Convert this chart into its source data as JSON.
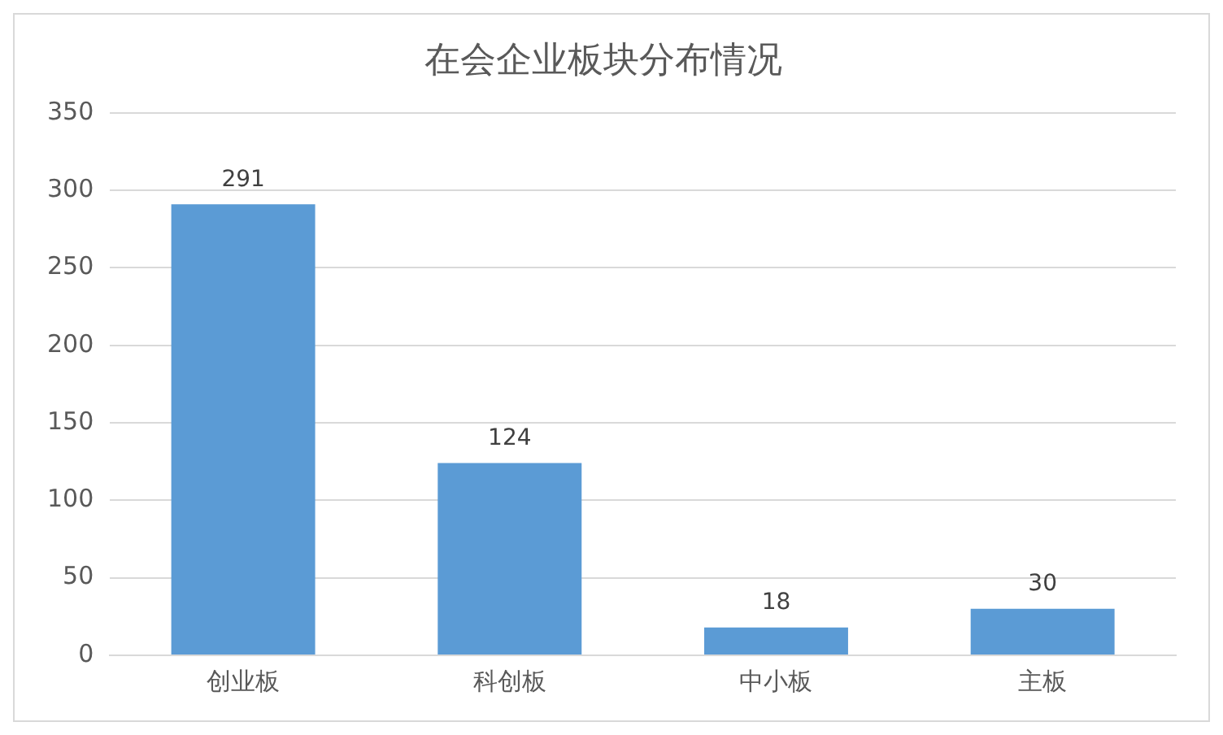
{
  "chart_data": {
    "type": "bar",
    "title": "在会企业板块分布情况",
    "categories": [
      "创业板",
      "科创板",
      "中小板",
      "主板"
    ],
    "values": [
      291,
      124,
      18,
      30
    ],
    "color": "#5b9bd5",
    "ylim": [
      0,
      350
    ],
    "yticks": [
      0,
      50,
      100,
      150,
      200,
      250,
      300,
      350
    ],
    "grid": "y",
    "data_labels": true,
    "legend": false
  }
}
